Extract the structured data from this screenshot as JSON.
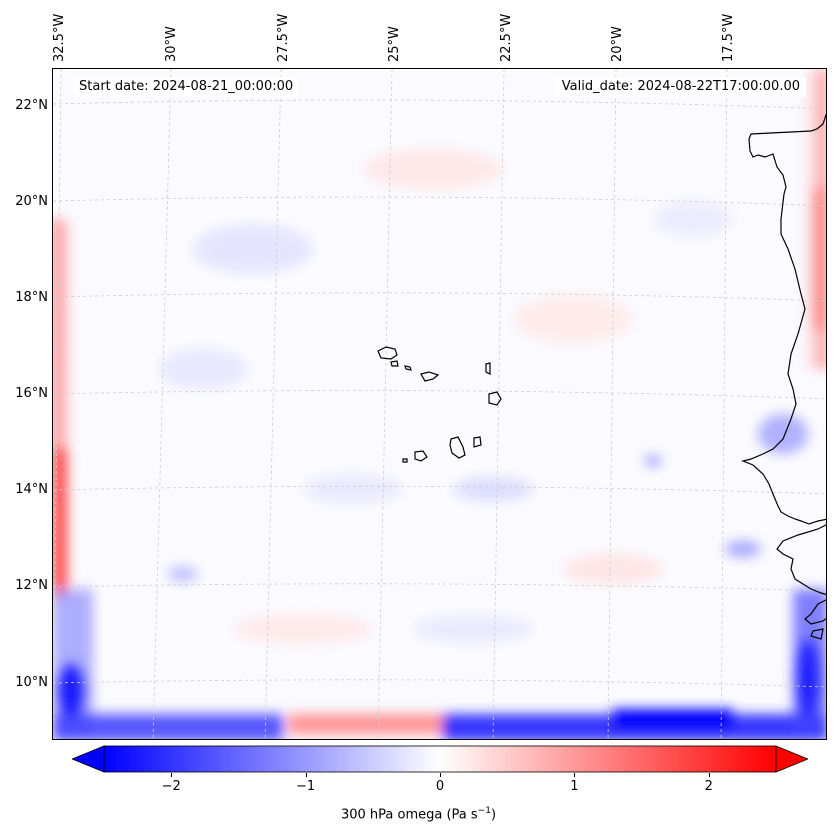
{
  "map": {
    "start_date": "Start date: 2024-08-21_00:00:00",
    "valid_date": "Valid_date: 2024-08-22T17:00:00.00",
    "lon_labels": [
      "32.5°W",
      "30°W",
      "27.5°W",
      "25°W",
      "22.5°W",
      "20°W",
      "17.5°W"
    ],
    "lat_labels": [
      "22°N",
      "20°N",
      "18°N",
      "16°N",
      "14°N",
      "12°N",
      "10°N"
    ],
    "colorbar": {
      "ticks": [
        "−2",
        "−1",
        "0",
        "1",
        "2"
      ],
      "tick_values": [
        -2,
        -1,
        0,
        1,
        2
      ],
      "range": [
        -2.5,
        2.5
      ],
      "label_main": "300 hPa omega (Pa s",
      "label_exp": "−1",
      "label_close": ")",
      "colormap": "bwr",
      "min_color": "#0000ff",
      "mid_color": "#ffffff",
      "max_color": "#ff0000"
    },
    "coastline_color": "#000000",
    "gridline_color": "#cccccc"
  }
}
